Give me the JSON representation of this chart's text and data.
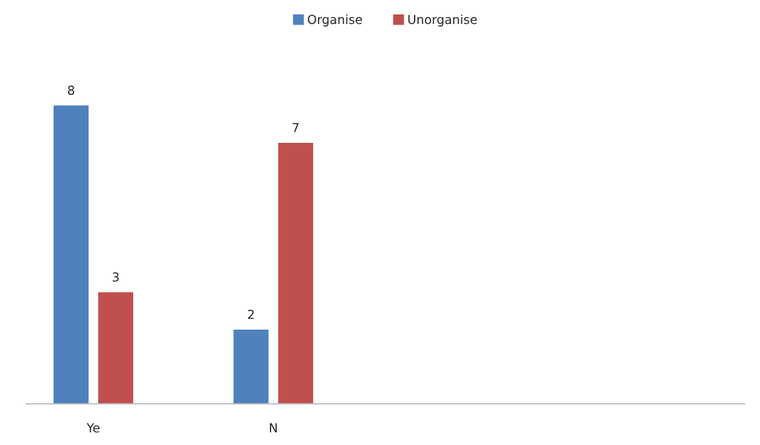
{
  "chart_data": {
    "type": "bar",
    "categories": [
      "Ye",
      "N",
      null,
      null
    ],
    "series": [
      {
        "name": "Organise",
        "color": "#4f81bd",
        "values": [
          8,
          2,
          null,
          null
        ]
      },
      {
        "name": "Unorganise",
        "color": "#c0504d",
        "values": [
          3,
          7,
          null,
          null
        ]
      }
    ],
    "data_labels": true,
    "legend": "top",
    "grid": false
  }
}
